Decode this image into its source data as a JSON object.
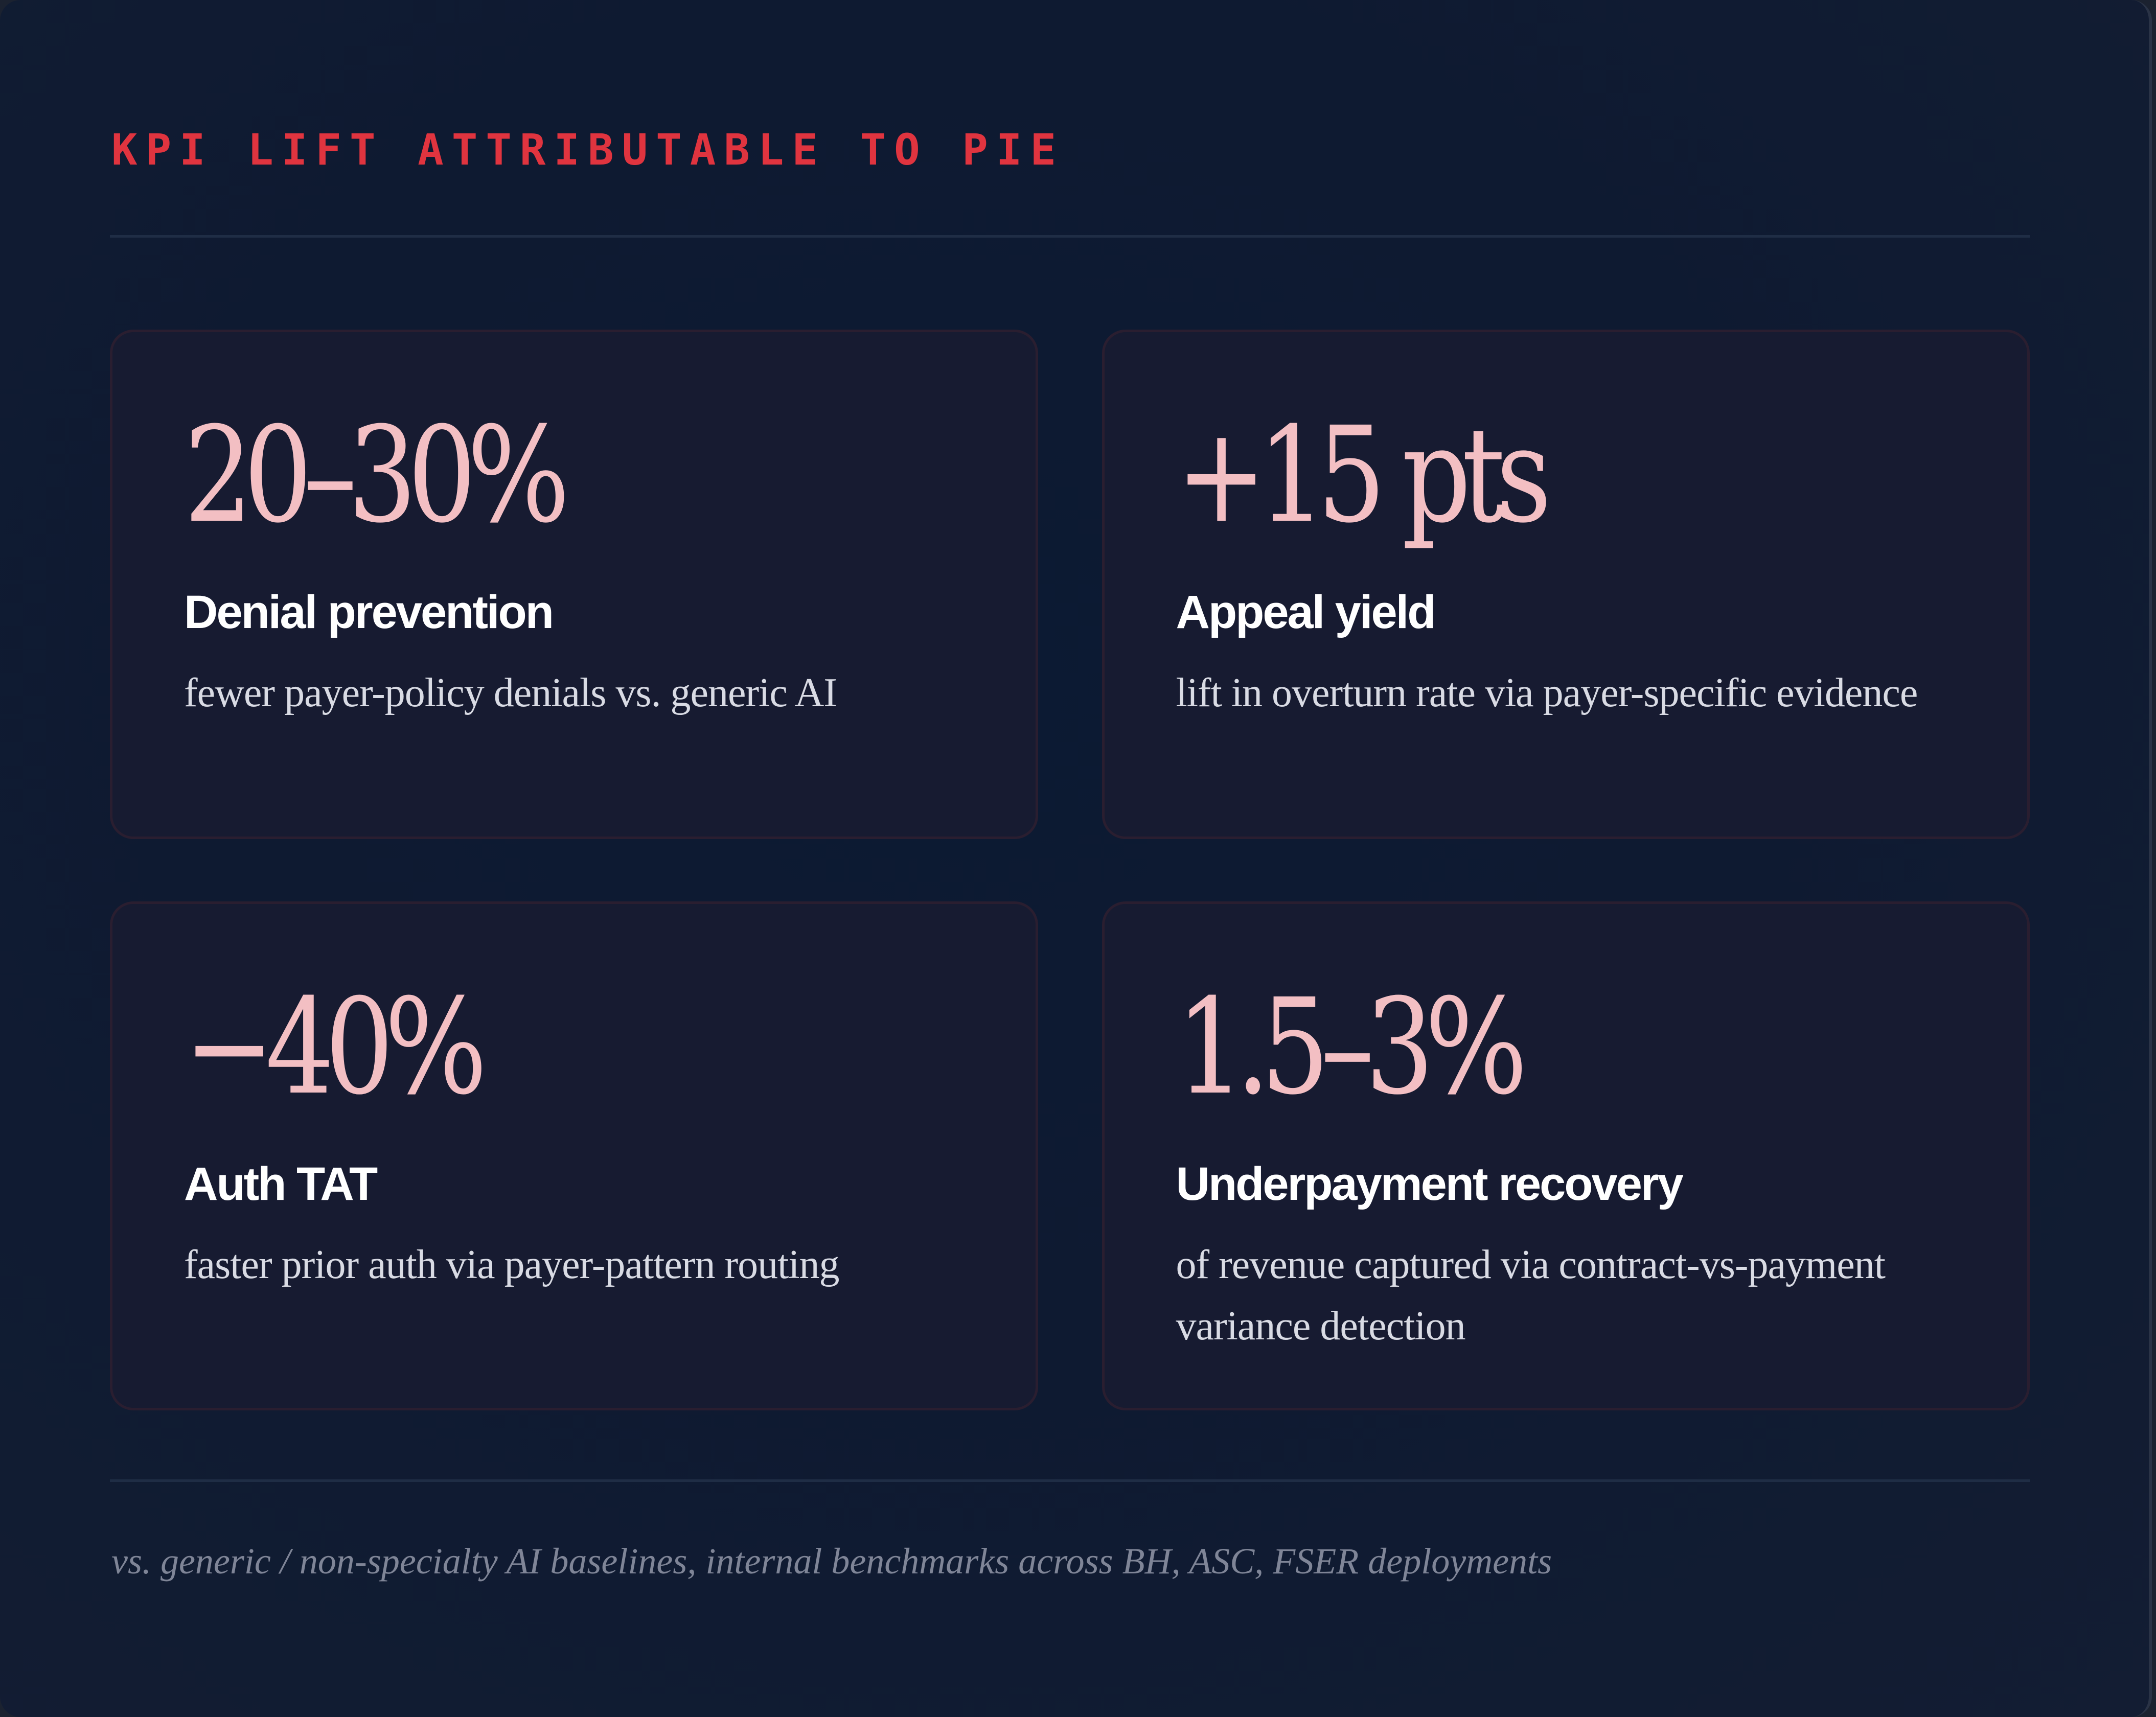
{
  "header": {
    "kicker": "KPI LIFT ATTRIBUTABLE TO PIE"
  },
  "kpis": [
    {
      "metric": "20–30%",
      "label": "Denial prevention",
      "description": "fewer payer-policy denials vs. generic AI"
    },
    {
      "metric": "+15 pts",
      "label": "Appeal yield",
      "description": "lift in overturn rate via payer-specific evidence"
    },
    {
      "metric": "−40%",
      "label": "Auth TAT",
      "description": "faster prior auth via payer-pattern routing"
    },
    {
      "metric": "1.5–3%",
      "label": "Underpayment recovery",
      "description": "of revenue captured via contract-vs-payment variance detection"
    }
  ],
  "footnote": "vs. generic / non-specialty AI baselines, internal benchmarks across BH, ASC, FSER deployments",
  "colors": {
    "accent": "#e0343f",
    "metric": "#f3bfc3",
    "background": "#0e1a31",
    "card": "#171b31"
  }
}
